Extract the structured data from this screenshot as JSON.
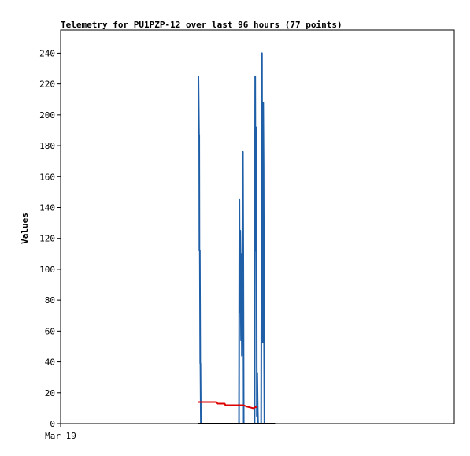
{
  "chart_data": {
    "type": "line",
    "title": "Telemetry for PU1PZP-12 over last 96 hours (77 points)",
    "xlabel": "",
    "ylabel": "Values",
    "ylim": [
      0,
      255
    ],
    "xlim": [
      0,
      96
    ],
    "x_tick_labels": [
      {
        "x": 0,
        "label": "Mar 19"
      }
    ],
    "y_ticks": [
      0,
      20,
      40,
      60,
      80,
      100,
      120,
      140,
      160,
      180,
      200,
      220,
      240
    ],
    "grid": false,
    "series": [
      {
        "color": "#1f5fa8",
        "points": [
          [
            33.6,
            225
          ],
          [
            33.75,
            187
          ],
          [
            33.8,
            187
          ],
          [
            33.85,
            112
          ],
          [
            33.95,
            112
          ],
          [
            34.05,
            39
          ],
          [
            34.1,
            39
          ],
          [
            34.2,
            0
          ],
          [
            43.5,
            0
          ],
          [
            43.6,
            145
          ],
          [
            43.7,
            72
          ],
          [
            43.8,
            125
          ],
          [
            43.9,
            90
          ],
          [
            44.0,
            54
          ],
          [
            44.1,
            110
          ],
          [
            44.2,
            44
          ],
          [
            44.35,
            133
          ],
          [
            44.45,
            176
          ],
          [
            44.55,
            104
          ],
          [
            44.65,
            0
          ],
          [
            47.3,
            0
          ],
          [
            47.45,
            225
          ],
          [
            47.55,
            112
          ],
          [
            47.65,
            192
          ],
          [
            47.75,
            176
          ],
          [
            47.85,
            5
          ],
          [
            47.95,
            33
          ],
          [
            48.05,
            12
          ],
          [
            48.15,
            0
          ],
          [
            48.9,
            0
          ],
          [
            49.0,
            120
          ],
          [
            49.1,
            240
          ],
          [
            49.2,
            90
          ],
          [
            49.3,
            53
          ],
          [
            49.4,
            208
          ],
          [
            49.5,
            168
          ],
          [
            49.6,
            65
          ],
          [
            49.7,
            0
          ]
        ]
      },
      {
        "color": "#dd0000",
        "points": [
          [
            33.6,
            14
          ],
          [
            38.0,
            14
          ],
          [
            38.3,
            13
          ],
          [
            40.0,
            13
          ],
          [
            40.2,
            12
          ],
          [
            44.5,
            12
          ],
          [
            45.5,
            11
          ],
          [
            47.0,
            10
          ],
          [
            47.8,
            11
          ]
        ]
      },
      {
        "color": "#000000",
        "points": [
          [
            33.6,
            0
          ],
          [
            52.3,
            0
          ]
        ]
      }
    ]
  }
}
